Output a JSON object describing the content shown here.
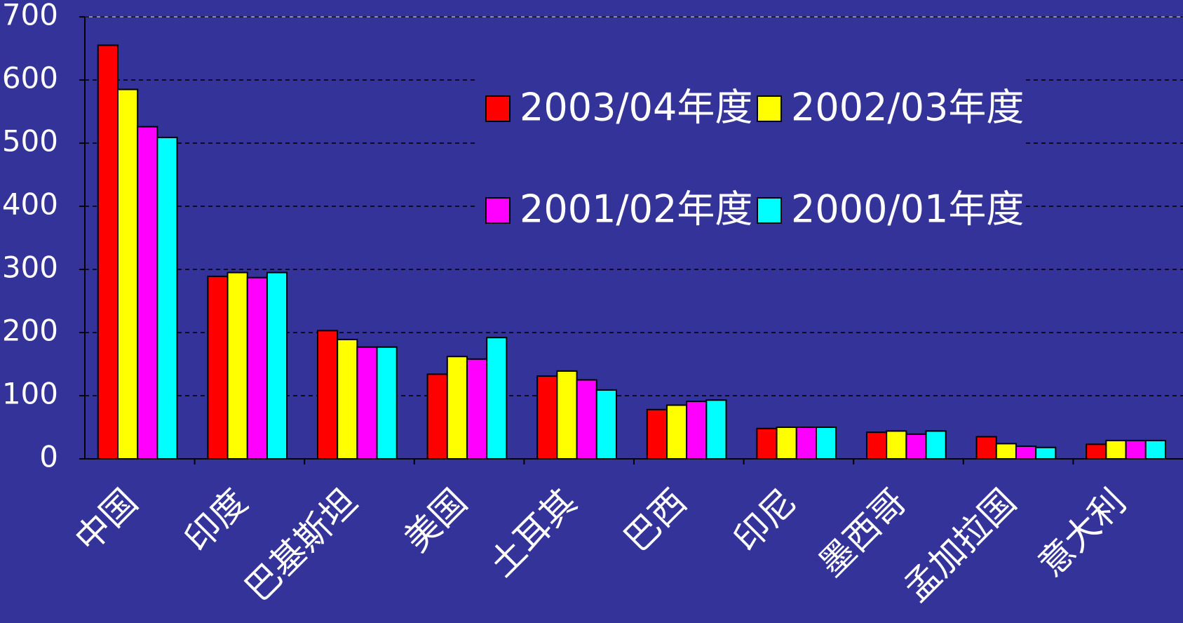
{
  "chart_data": {
    "type": "bar",
    "categories": [
      "中国",
      "印度",
      "巴基斯坦",
      "美国",
      "土耳其",
      "巴西",
      "印尼",
      "墨西哥",
      "孟加拉国",
      "意大利"
    ],
    "series": [
      {
        "name": "2003/04年度",
        "color": "#ff0000",
        "values": [
          655,
          289,
          203,
          134,
          131,
          78,
          48,
          42,
          35,
          23
        ]
      },
      {
        "name": "2002/03年度",
        "color": "#ffff00",
        "values": [
          585,
          295,
          189,
          162,
          139,
          85,
          50,
          44,
          24,
          29
        ]
      },
      {
        "name": "2001/02年度",
        "color": "#ff00ff",
        "values": [
          526,
          287,
          177,
          158,
          125,
          91,
          50,
          39,
          20,
          29
        ]
      },
      {
        "name": "2000/01年度",
        "color": "#00ffff",
        "values": [
          509,
          295,
          177,
          192,
          109,
          93,
          50,
          44,
          18,
          29
        ]
      }
    ],
    "ylim": [
      0,
      700
    ],
    "yticks": [
      0,
      100,
      200,
      300,
      400,
      500,
      600,
      700
    ],
    "grid": true
  }
}
